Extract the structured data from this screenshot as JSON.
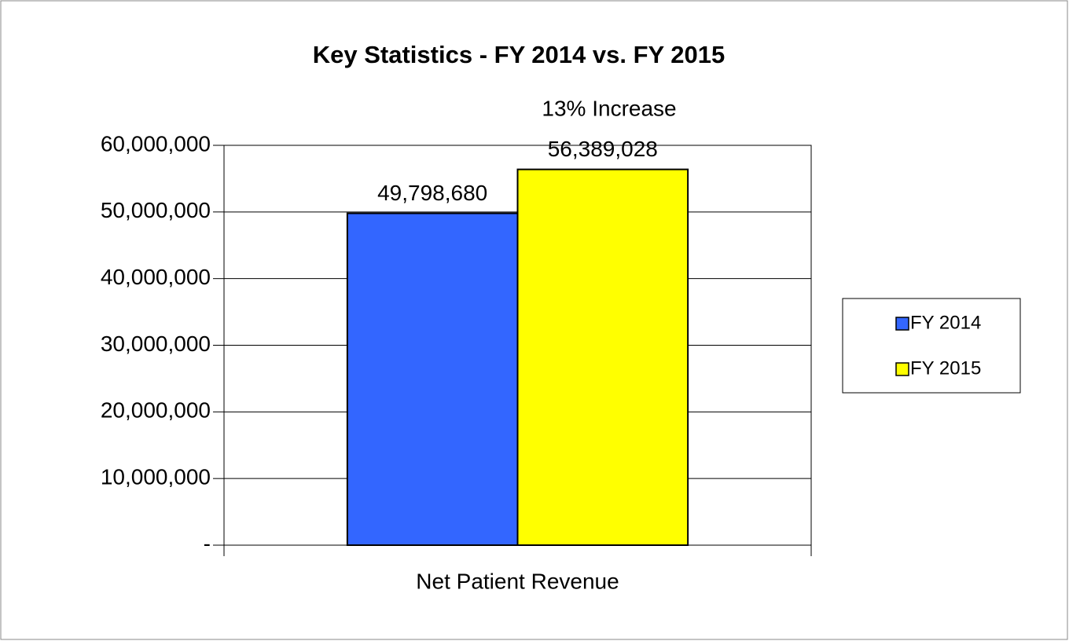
{
  "chart_data": {
    "type": "bar",
    "title": "Key Statistics - FY 2014 vs. FY 2015",
    "annotation": "13% Increase",
    "categories": [
      "Net Patient Revenue"
    ],
    "series": [
      {
        "name": "FY 2014",
        "color": "#3366ff",
        "values": [
          49798680
        ],
        "value_labels": [
          "49,798,680"
        ]
      },
      {
        "name": "FY 2015",
        "color": "#ffff00",
        "values": [
          56389028
        ],
        "value_labels": [
          "56,389,028"
        ]
      }
    ],
    "ylim": [
      0,
      60000000
    ],
    "yticks": [
      {
        "value": 0,
        "label": "-"
      },
      {
        "value": 10000000,
        "label": "10,000,000"
      },
      {
        "value": 20000000,
        "label": "20,000,000"
      },
      {
        "value": 30000000,
        "label": "30,000,000"
      },
      {
        "value": 40000000,
        "label": "40,000,000"
      },
      {
        "value": 50000000,
        "label": "50,000,000"
      },
      {
        "value": 60000000,
        "label": "60,000,000"
      }
    ],
    "grid": true,
    "legend": "right"
  }
}
